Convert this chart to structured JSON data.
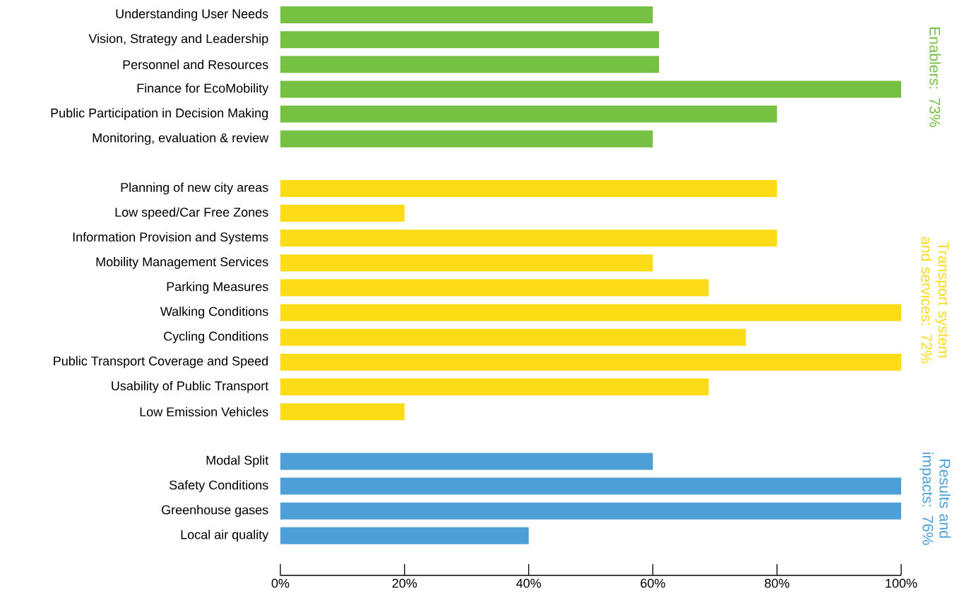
{
  "chart_data": {
    "type": "bar",
    "orientation": "horizontal",
    "categories": [
      "Understanding User Needs",
      "Vision, Strategy and Leadership",
      "Personnel and Resources",
      "Finance for EcoMobility",
      "Public Participation in Decision Making",
      "Monitoring, evaluation & review",
      null,
      "Planning of new city areas",
      "Low speed/Car Free Zones",
      "Information Provision and Systems",
      "Mobility Management Services",
      "Parking Measures",
      "Walking Conditions",
      "Cycling Conditions",
      "Public Transport Coverage and Speed",
      "Usability of Public Transport",
      "Low Emission Vehicles",
      null,
      "Modal Split",
      "Safety Conditions",
      "Greenhouse gases",
      "Local air quality"
    ],
    "values": [
      60,
      61,
      61,
      100,
      80,
      60,
      null,
      80,
      20,
      80,
      60,
      69,
      100,
      75,
      100,
      69,
      20,
      null,
      60,
      100,
      100,
      40
    ],
    "colors": [
      "#76c043",
      "#76c043",
      "#76c043",
      "#76c043",
      "#76c043",
      "#76c043",
      null,
      "#fcdc17",
      "#fcdc17",
      "#fcdc17",
      "#fcdc17",
      "#fcdc17",
      "#fcdc17",
      "#fcdc17",
      "#fcdc17",
      "#fcdc17",
      "#fcdc17",
      null,
      "#4e9fd6",
      "#4e9fd6",
      "#4e9fd6",
      "#4e9fd6"
    ],
    "xlim": [
      0,
      100
    ],
    "xticks": [
      {
        "value": 0,
        "label": "0%"
      },
      {
        "value": 20,
        "label": "20%"
      },
      {
        "value": 40,
        "label": "40%"
      },
      {
        "value": 60,
        "label": "60%"
      },
      {
        "value": 80,
        "label": "80%"
      },
      {
        "value": 100,
        "label": "100%"
      }
    ],
    "annotations": [
      "Enablers: 73%",
      "Transport system and services: 72%",
      "Results and impacts: 76%"
    ]
  }
}
